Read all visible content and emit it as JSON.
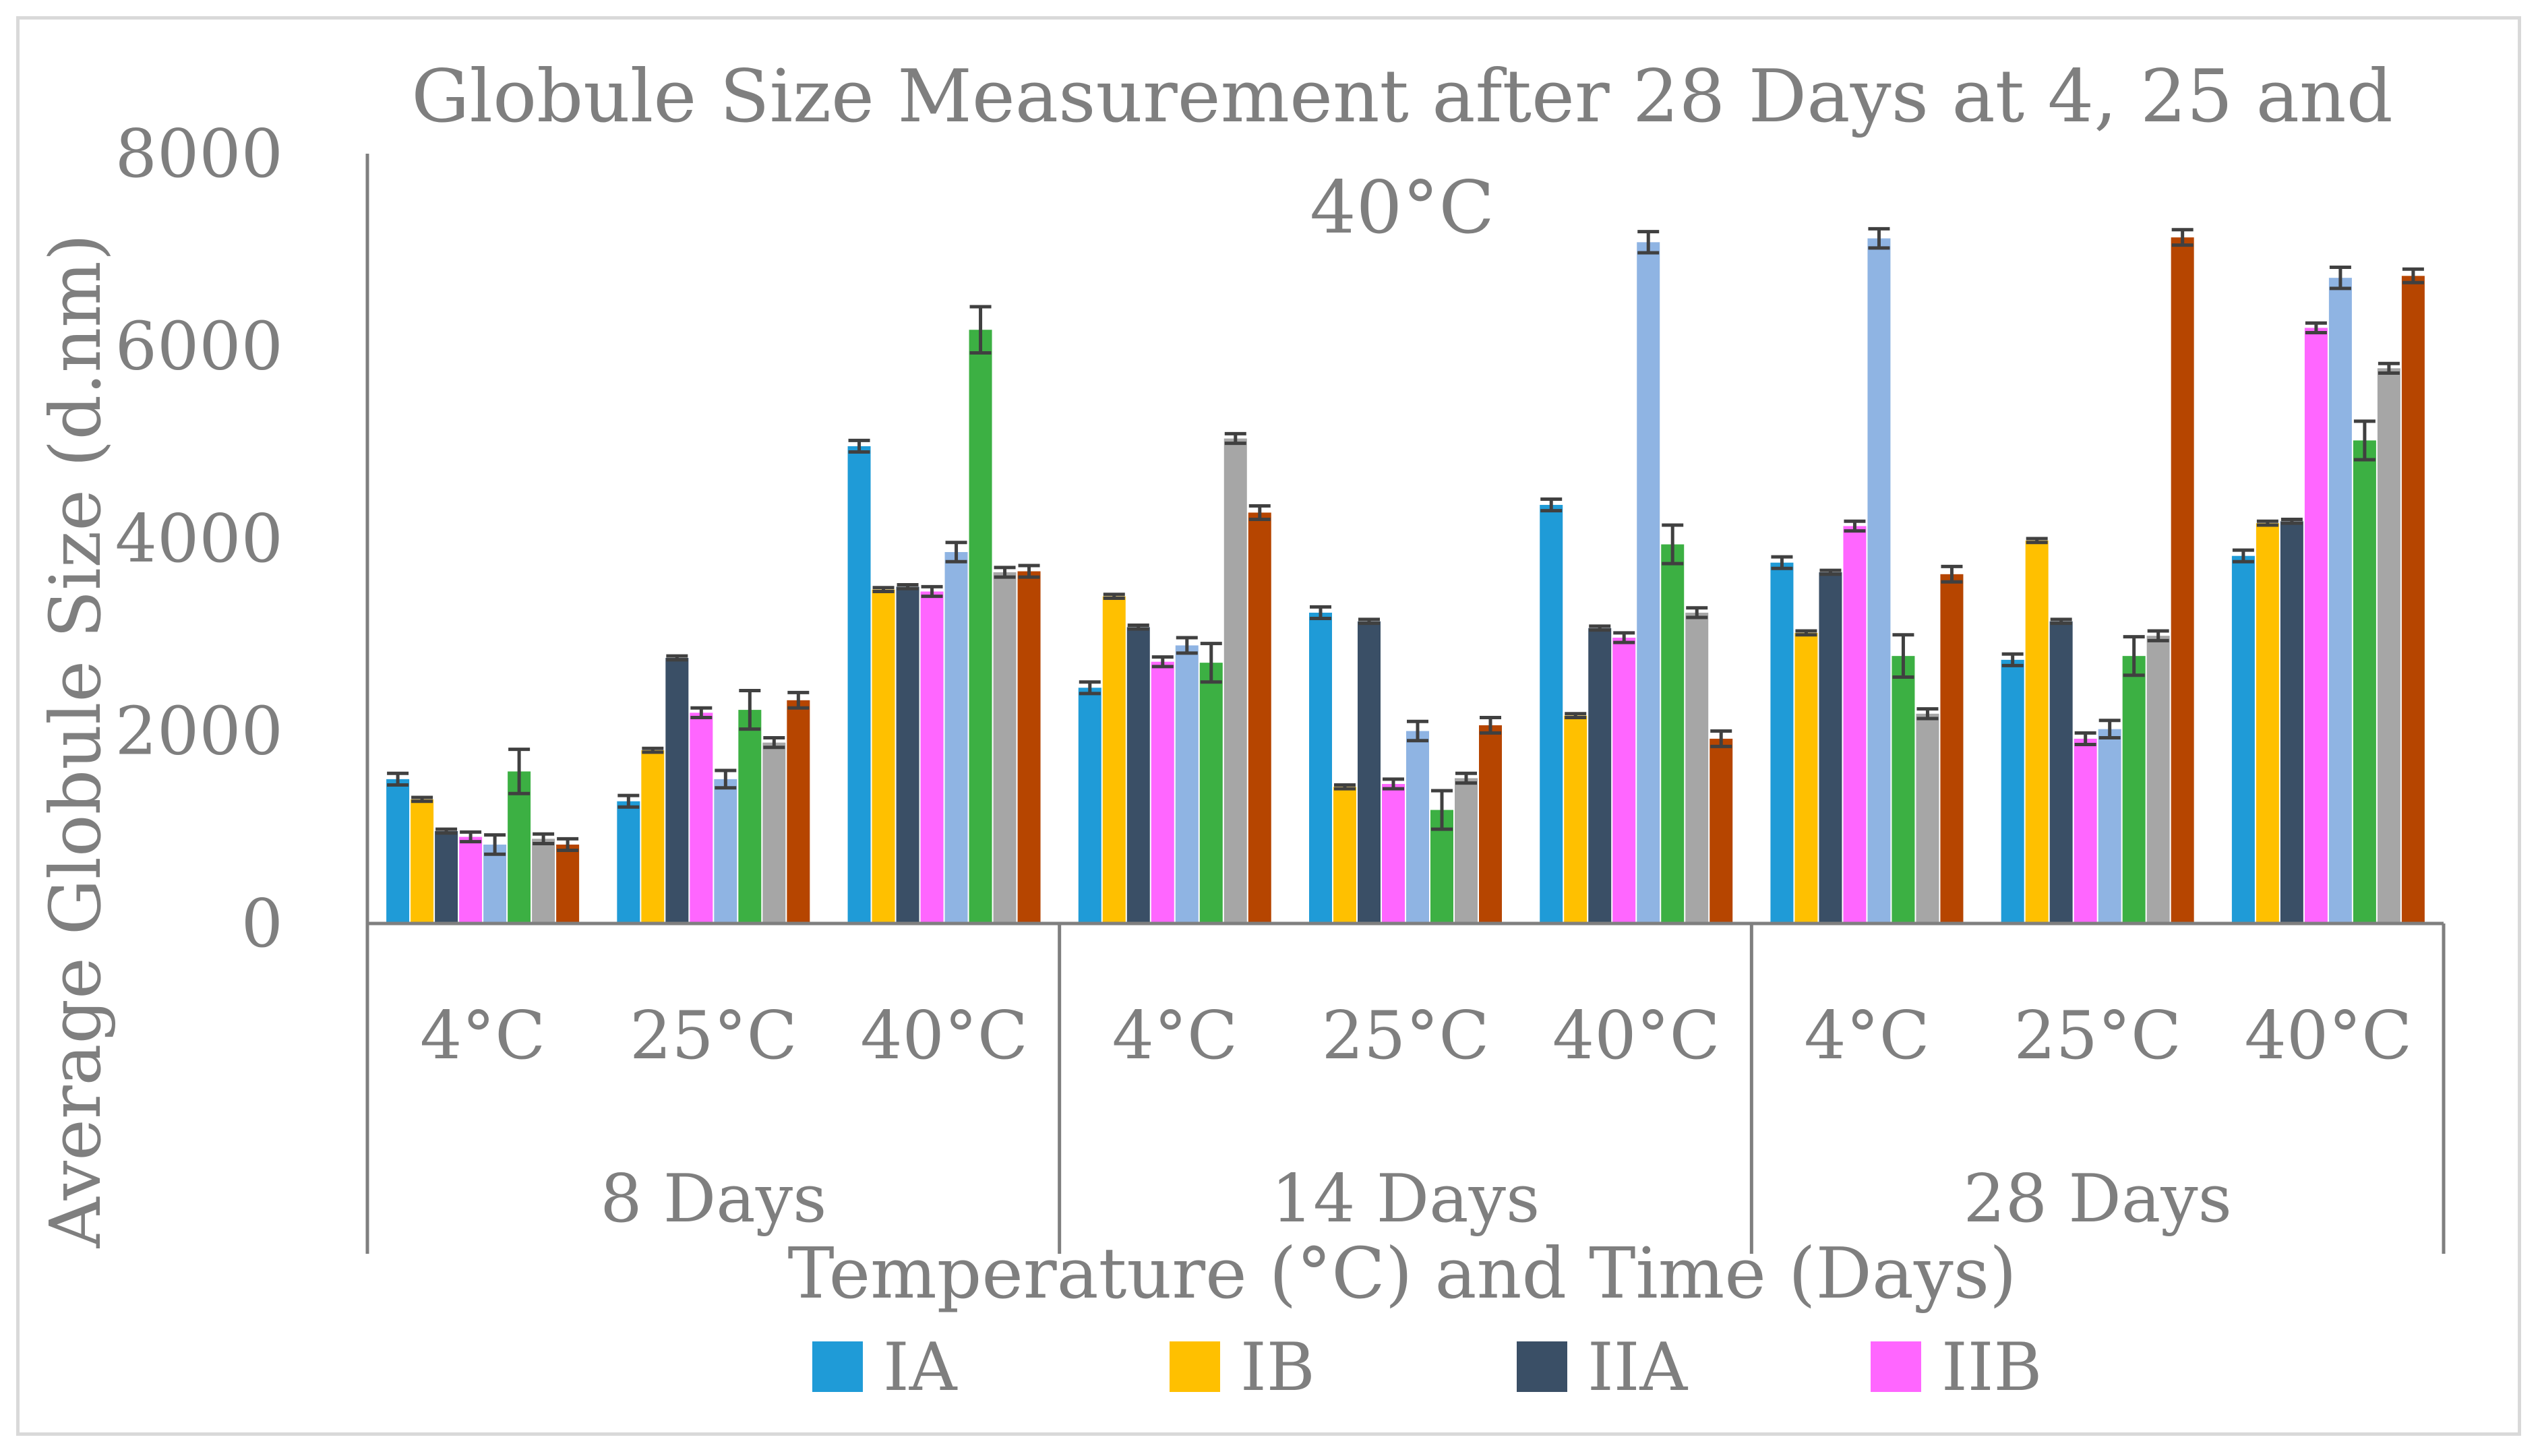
{
  "chart_data": {
    "type": "bar",
    "title": "Globule Size Measurement after 28 Days at 4, 25 and 40°C",
    "title_lines": [
      "Globule Size Measurement after 28 Days at 4, 25 and",
      "40°C"
    ],
    "ylabel": "Average Globule Size (d.nm)",
    "xlabel": "Temperature (°C) and Time (Days)",
    "ylim": [
      0,
      8000
    ],
    "yticks": [
      0,
      2000,
      4000,
      6000,
      8000
    ],
    "ytick_labels": [
      "0",
      "2000",
      "4000",
      "6000",
      "8000"
    ],
    "groups": [
      {
        "label": "8 Days",
        "categories": [
          "4°C",
          "25°C",
          "40°C"
        ]
      },
      {
        "label": "14 Days",
        "categories": [
          "4°C",
          "25°C",
          "40°C"
        ]
      },
      {
        "label": "28 Days",
        "categories": [
          "4°C",
          "25°C",
          "40°C"
        ]
      }
    ],
    "categories": [
      "8 Days 4°C",
      "8 Days 25°C",
      "8 Days 40°C",
      "14 Days 4°C",
      "14 Days 25°C",
      "14 Days 40°C",
      "28 Days 4°C",
      "28 Days 25°C",
      "28 Days 40°C"
    ],
    "series": [
      {
        "name": "IA",
        "color": "#1f9bd7",
        "values": [
          1500,
          1270,
          4960,
          2450,
          3230,
          4350,
          3750,
          2740,
          3820
        ],
        "errors": [
          60,
          60,
          60,
          60,
          60,
          60,
          60,
          60,
          60
        ]
      },
      {
        "name": "IB",
        "color": "#ffc000",
        "values": [
          1290,
          1800,
          3470,
          3400,
          1420,
          2160,
          3020,
          3980,
          4160
        ],
        "errors": [
          20,
          20,
          20,
          20,
          20,
          20,
          20,
          20,
          20
        ]
      },
      {
        "name": "IIA",
        "color": "#3a4f66",
        "values": [
          960,
          2760,
          3500,
          3080,
          3140,
          3070,
          3650,
          3140,
          4180
        ],
        "errors": [
          20,
          20,
          20,
          20,
          20,
          20,
          20,
          20,
          20
        ]
      },
      {
        "name": "IIB",
        "color": "#ff66ff",
        "values": [
          900,
          2190,
          3450,
          2720,
          1450,
          2970,
          4130,
          1920,
          6190
        ],
        "errors": [
          50,
          50,
          50,
          50,
          50,
          50,
          50,
          60,
          50
        ]
      },
      {
        "name": "",
        "color": "#8fb4e3",
        "values": [
          820,
          1500,
          3860,
          2890,
          2000,
          7080,
          7120,
          2020,
          6710
        ],
        "errors": [
          100,
          90,
          100,
          80,
          100,
          110,
          100,
          90,
          110
        ]
      },
      {
        "name": "",
        "color": "#3cb043",
        "values": [
          1580,
          2220,
          6170,
          2710,
          1180,
          3940,
          2780,
          2780,
          5020
        ],
        "errors": [
          230,
          200,
          240,
          200,
          200,
          200,
          220,
          200,
          200
        ]
      },
      {
        "name": "",
        "color": "#a6a6a6",
        "values": [
          880,
          1880,
          3650,
          5040,
          1510,
          3230,
          2180,
          2990,
          5770
        ],
        "errors": [
          50,
          50,
          50,
          50,
          50,
          50,
          50,
          50,
          50
        ]
      },
      {
        "name": "",
        "color": "#b64500",
        "values": [
          820,
          2320,
          3660,
          4270,
          2060,
          1920,
          3630,
          7130,
          6730
        ],
        "errors": [
          60,
          80,
          60,
          70,
          80,
          80,
          80,
          80,
          70
        ]
      }
    ],
    "legend": [
      "IA",
      "IB",
      "IIA",
      "IIB"
    ]
  }
}
